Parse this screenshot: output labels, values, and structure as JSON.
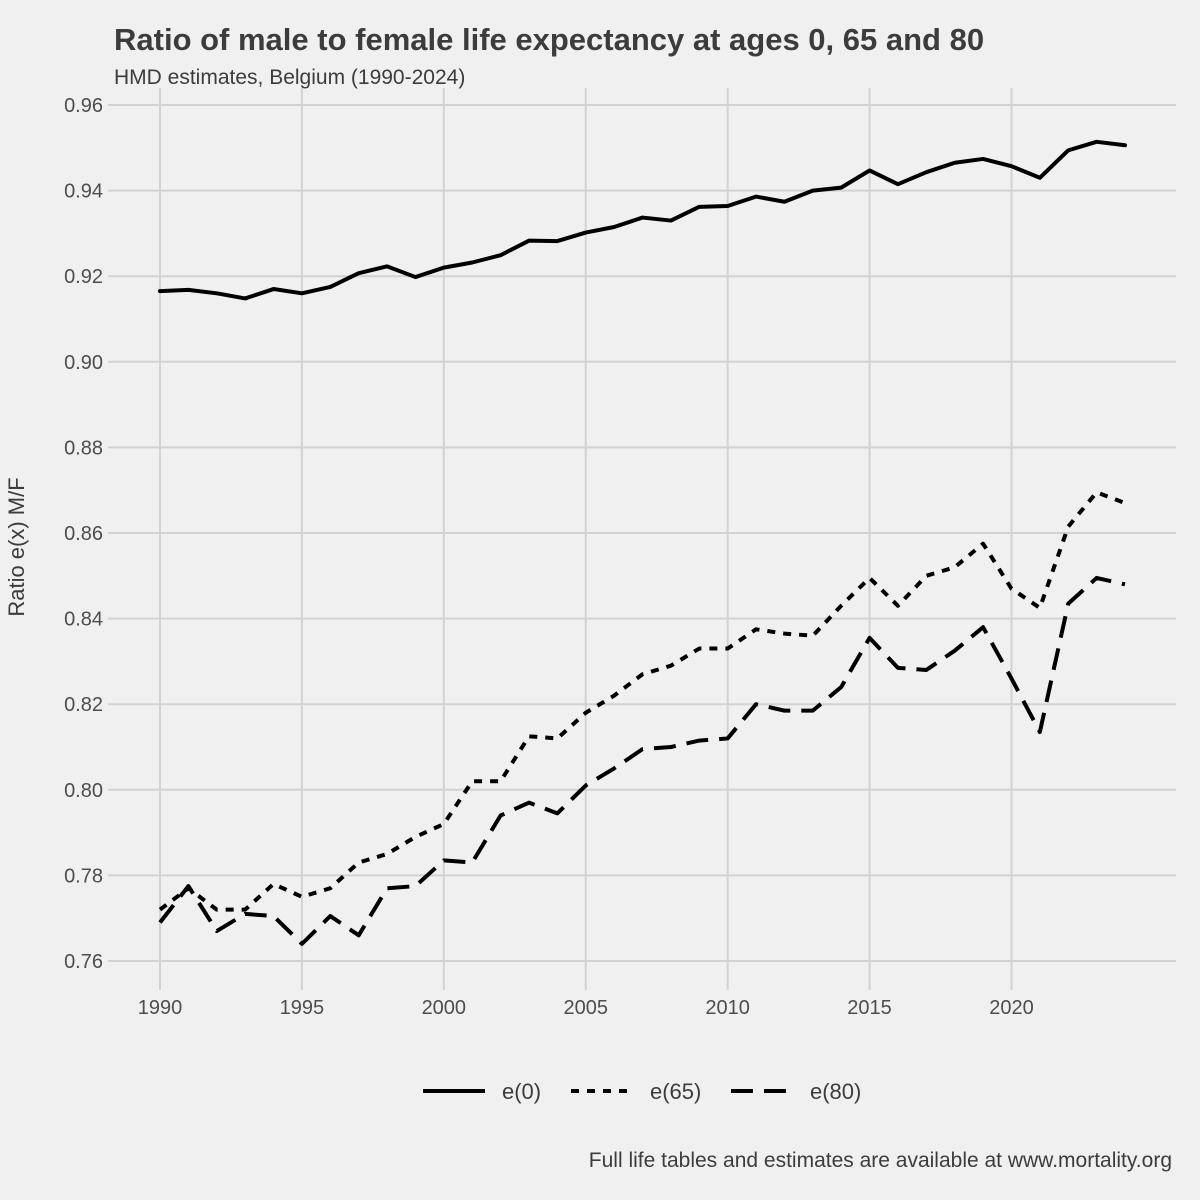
{
  "title": "Ratio of male to female life expectancy at ages 0, 65 and 80",
  "subtitle": "HMD estimates, Belgium (1990-2024)",
  "caption": "Full life tables and estimates are available at www.mortality.org",
  "chart_data": {
    "type": "line",
    "title": "Ratio of male to female life expectancy at ages 0, 65 and 80",
    "subtitle": "HMD estimates, Belgium (1990-2024)",
    "xlabel": "",
    "ylabel": "Ratio e(x) M/F",
    "xlim": [
      1990,
      2024
    ],
    "ylim": [
      0.755,
      0.96
    ],
    "x_ticks": [
      1990,
      1995,
      2000,
      2005,
      2010,
      2015,
      2020
    ],
    "x_tick_labels": [
      "1990",
      "1995",
      "2000",
      "2005",
      "2010",
      "2015",
      "2020"
    ],
    "y_ticks": [
      0.76,
      0.78,
      0.8,
      0.82,
      0.84,
      0.86,
      0.88,
      0.9,
      0.92,
      0.94,
      0.96
    ],
    "y_tick_labels": [
      "0.76",
      "0.78",
      "0.80",
      "0.82",
      "0.84",
      "0.86",
      "0.88",
      "0.90",
      "0.92",
      "0.94",
      "0.96"
    ],
    "grid": true,
    "legend_position": "bottom",
    "line_color": "#000000",
    "x": [
      1990,
      1991,
      1992,
      1993,
      1994,
      1995,
      1996,
      1997,
      1998,
      1999,
      2000,
      2001,
      2002,
      2003,
      2004,
      2005,
      2006,
      2007,
      2008,
      2009,
      2010,
      2011,
      2012,
      2013,
      2014,
      2015,
      2016,
      2017,
      2018,
      2019,
      2020,
      2021,
      2022,
      2023,
      2024
    ],
    "series": [
      {
        "name": "e(0)",
        "line_style": "solid",
        "values": [
          0.9165,
          0.9168,
          0.916,
          0.9148,
          0.917,
          0.916,
          0.9175,
          0.9207,
          0.9223,
          0.9198,
          0.922,
          0.9232,
          0.9249,
          0.9283,
          0.9282,
          0.9302,
          0.9315,
          0.9337,
          0.933,
          0.9362,
          0.9364,
          0.9386,
          0.9374,
          0.94,
          0.9407,
          0.9447,
          0.9415,
          0.9443,
          0.9465,
          0.9474,
          0.9457,
          0.943,
          0.9494,
          0.9514,
          0.9506
        ]
      },
      {
        "name": "e(65)",
        "line_style": "dotted",
        "values": [
          0.772,
          0.777,
          0.772,
          0.772,
          0.778,
          0.775,
          0.777,
          0.783,
          0.785,
          0.789,
          0.792,
          0.802,
          0.802,
          0.8125,
          0.812,
          0.818,
          0.822,
          0.827,
          0.829,
          0.833,
          0.833,
          0.8375,
          0.8365,
          0.836,
          0.843,
          0.8495,
          0.843,
          0.85,
          0.852,
          0.8575,
          0.847,
          0.8425,
          0.8615,
          0.8695,
          0.867
        ]
      },
      {
        "name": "e(80)",
        "line_style": "dashed",
        "values": [
          0.769,
          0.7775,
          0.767,
          0.771,
          0.7705,
          0.764,
          0.7705,
          0.766,
          0.777,
          0.7775,
          0.7835,
          0.783,
          0.794,
          0.797,
          0.7945,
          0.801,
          0.805,
          0.8095,
          0.81,
          0.8115,
          0.812,
          0.82,
          0.8185,
          0.8185,
          0.824,
          0.8355,
          0.8285,
          0.828,
          0.8325,
          0.838,
          0.826,
          0.8135,
          0.8435,
          0.8495,
          0.848
        ]
      }
    ]
  }
}
